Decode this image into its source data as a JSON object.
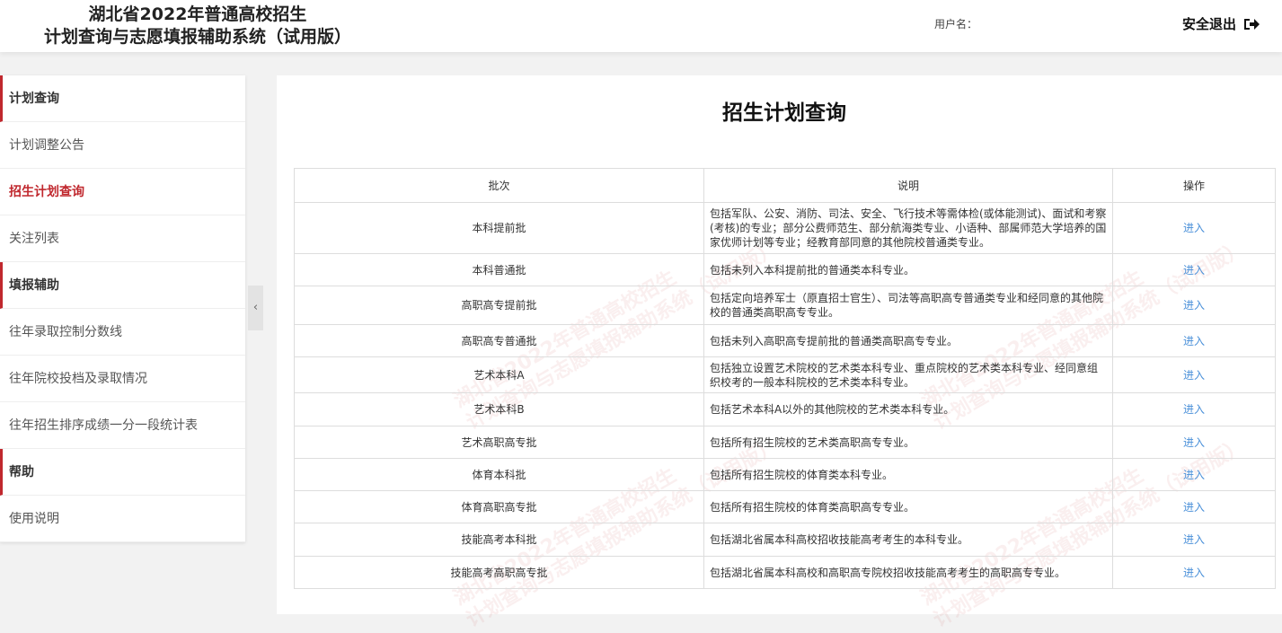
{
  "header": {
    "title_line1": "湖北省2022年普通高校招生",
    "title_line2": "计划查询与志愿填报辅助系统（试用版）",
    "user_label": "用户名：",
    "logout_label": "安全退出",
    "logout_icon": "sign-out-icon"
  },
  "sidebar": {
    "items": [
      {
        "label": "计划查询",
        "type": "group"
      },
      {
        "label": "计划调整公告",
        "type": "item"
      },
      {
        "label": "招生计划查询",
        "type": "active"
      },
      {
        "label": "关注列表",
        "type": "item"
      },
      {
        "label": "填报辅助",
        "type": "group"
      },
      {
        "label": "往年录取控制分数线",
        "type": "item"
      },
      {
        "label": "往年院校投档及录取情况",
        "type": "item"
      },
      {
        "label": "往年招生排序成绩一分一段统计表",
        "type": "item"
      },
      {
        "label": "帮助",
        "type": "group"
      },
      {
        "label": "使用说明",
        "type": "item"
      }
    ],
    "collapse_icon": "‹"
  },
  "main": {
    "title": "招生计划查询",
    "columns": [
      "批次",
      "说明",
      "操作"
    ],
    "rows": [
      {
        "batch": "本科提前批",
        "desc": "包括军队、公安、消防、司法、安全、飞行技术等需体检(或体能测试)、面试和考察(考核)的专业；部分公费师范生、部分航海类专业、小语种、部属师范大学培养的国家优师计划等专业；经教育部同意的其他院校普通类专业。",
        "action": "进入"
      },
      {
        "batch": "本科普通批",
        "desc": "包括未列入本科提前批的普通类本科专业。",
        "action": "进入"
      },
      {
        "batch": "高职高专提前批",
        "desc": "包括定向培养军士（原直招士官生）、司法等高职高专普通类专业和经同意的其他院校的普通类高职高专专业。",
        "action": "进入"
      },
      {
        "batch": "高职高专普通批",
        "desc": "包括未列入高职高专提前批的普通类高职高专专业。",
        "action": "进入"
      },
      {
        "batch": "艺术本科A",
        "desc": "包括独立设置艺术院校的艺术类本科专业、重点院校的艺术类本科专业、经同意组织校考的一般本科院校的艺术类本科专业。",
        "action": "进入"
      },
      {
        "batch": "艺术本科B",
        "desc": "包括艺术本科A以外的其他院校的艺术类本科专业。",
        "action": "进入"
      },
      {
        "batch": "艺术高职高专批",
        "desc": "包括所有招生院校的艺术类高职高专专业。",
        "action": "进入"
      },
      {
        "batch": "体育本科批",
        "desc": "包括所有招生院校的体育类本科专业。",
        "action": "进入"
      },
      {
        "batch": "体育高职高专批",
        "desc": "包括所有招生院校的体育类高职高专专业。",
        "action": "进入"
      },
      {
        "batch": "技能高考本科批",
        "desc": "包括湖北省属本科高校招收技能高考考生的本科专业。",
        "action": "进入"
      },
      {
        "batch": "技能高考高职高专批",
        "desc": "包括湖北省属本科高校和高职高专院校招收技能高考考生的高职高专专业。",
        "action": "进入"
      }
    ]
  },
  "watermark": {
    "line1": "湖北省2022年普通高校招生",
    "line2": "计划查询与志愿填报辅助系统（试用版）"
  },
  "colors": {
    "accent": "#c0282e",
    "link": "#4a90d9"
  }
}
